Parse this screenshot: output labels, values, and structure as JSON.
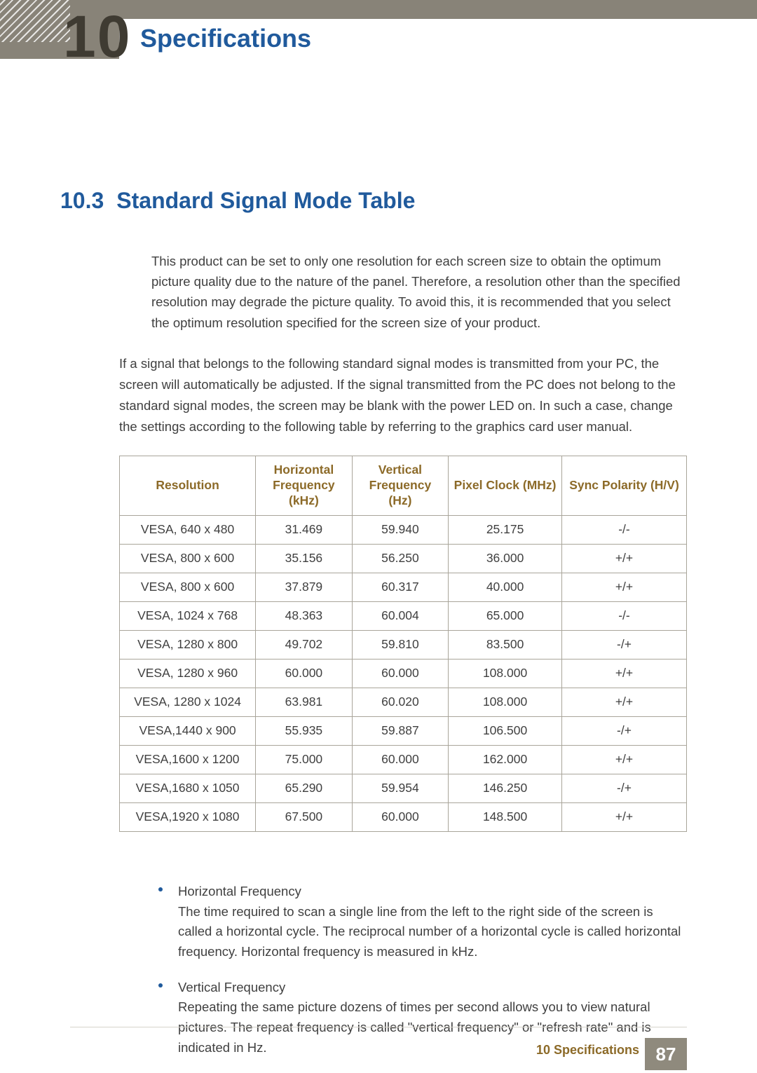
{
  "colors": {
    "header_bar": "#888378",
    "chapter_num": "#3f3b32",
    "heading_blue": "#205a9c",
    "body_text": "#404040",
    "table_border": "#a9a59a",
    "table_header_text": "#8c6a28",
    "bullet_blue": "#205a9c",
    "page_bg": "#ffffff",
    "footer_rule": "#d6d3cb",
    "pagebox_bg": "#8f8a7d"
  },
  "header": {
    "chapter_number": "10",
    "chapter_title": "Specifications"
  },
  "section": {
    "number": "10.3",
    "title": "Standard Signal Mode Table"
  },
  "paragraphs": {
    "p1": "This product can be set to only one resolution for each screen size to obtain the optimum picture quality due to the nature of the panel. Therefore, a resolution other than the specified resolution may degrade the picture quality. To avoid this, it is recommended that you select the optimum resolution specified for the screen size of your product.",
    "p2": "If a signal that belongs to the following standard signal modes is transmitted from your PC, the screen will automatically be adjusted. If the signal transmitted from the PC does not belong to the standard signal modes, the screen may be blank with the power LED on. In such a case, change the settings according to the following table by referring to the graphics card user manual."
  },
  "table": {
    "type": "table",
    "columns": [
      {
        "label": "Resolution",
        "width_pct": 24,
        "align": "center"
      },
      {
        "label": "Horizontal Frequency (kHz)",
        "width_pct": 17,
        "align": "center"
      },
      {
        "label": "Vertical Frequency (Hz)",
        "width_pct": 17,
        "align": "center"
      },
      {
        "label": "Pixel Clock (MHz)",
        "width_pct": 20,
        "align": "center"
      },
      {
        "label": "Sync Polarity (H/V)",
        "width_pct": 22,
        "align": "center"
      }
    ],
    "rows": [
      [
        "VESA, 640 x 480",
        "31.469",
        "59.940",
        "25.175",
        "-/-"
      ],
      [
        "VESA, 800 x 600",
        "35.156",
        "56.250",
        "36.000",
        "+/+"
      ],
      [
        "VESA, 800 x 600",
        "37.879",
        "60.317",
        "40.000",
        "+/+"
      ],
      [
        "VESA, 1024 x 768",
        "48.363",
        "60.004",
        "65.000",
        "-/-"
      ],
      [
        "VESA, 1280 x 800",
        "49.702",
        "59.810",
        "83.500",
        "-/+"
      ],
      [
        "VESA, 1280 x 960",
        "60.000",
        "60.000",
        "108.000",
        "+/+"
      ],
      [
        "VESA, 1280 x 1024",
        "63.981",
        "60.020",
        "108.000",
        "+/+"
      ],
      [
        "VESA,1440 x 900",
        "55.935",
        "59.887",
        "106.500",
        "-/+"
      ],
      [
        "VESA,1600 x 1200",
        "75.000",
        "60.000",
        "162.000",
        "+/+"
      ],
      [
        "VESA,1680 x 1050",
        "65.290",
        "59.954",
        "146.250",
        "-/+"
      ],
      [
        "VESA,1920 x 1080",
        "67.500",
        "60.000",
        "148.500",
        "+/+"
      ]
    ],
    "header_color": "#8c6a28",
    "border_color": "#a9a59a",
    "body_fontsize": 17.5,
    "header_fontsize": 17.5
  },
  "notes": [
    {
      "title": "Horizontal Frequency",
      "body": "The time required to scan a single line from the left to the right side of the screen is called a horizontal cycle. The reciprocal number of a horizontal cycle is called horizontal frequency. Horizontal frequency is measured in kHz."
    },
    {
      "title": "Vertical Frequency",
      "body": "Repeating the same picture dozens of times per second allows you to view natural pictures. The repeat frequency is called \"vertical frequency\" or \"refresh rate\" and is indicated in Hz."
    }
  ],
  "footer": {
    "text": "10 Specifications",
    "page_number": "87"
  }
}
